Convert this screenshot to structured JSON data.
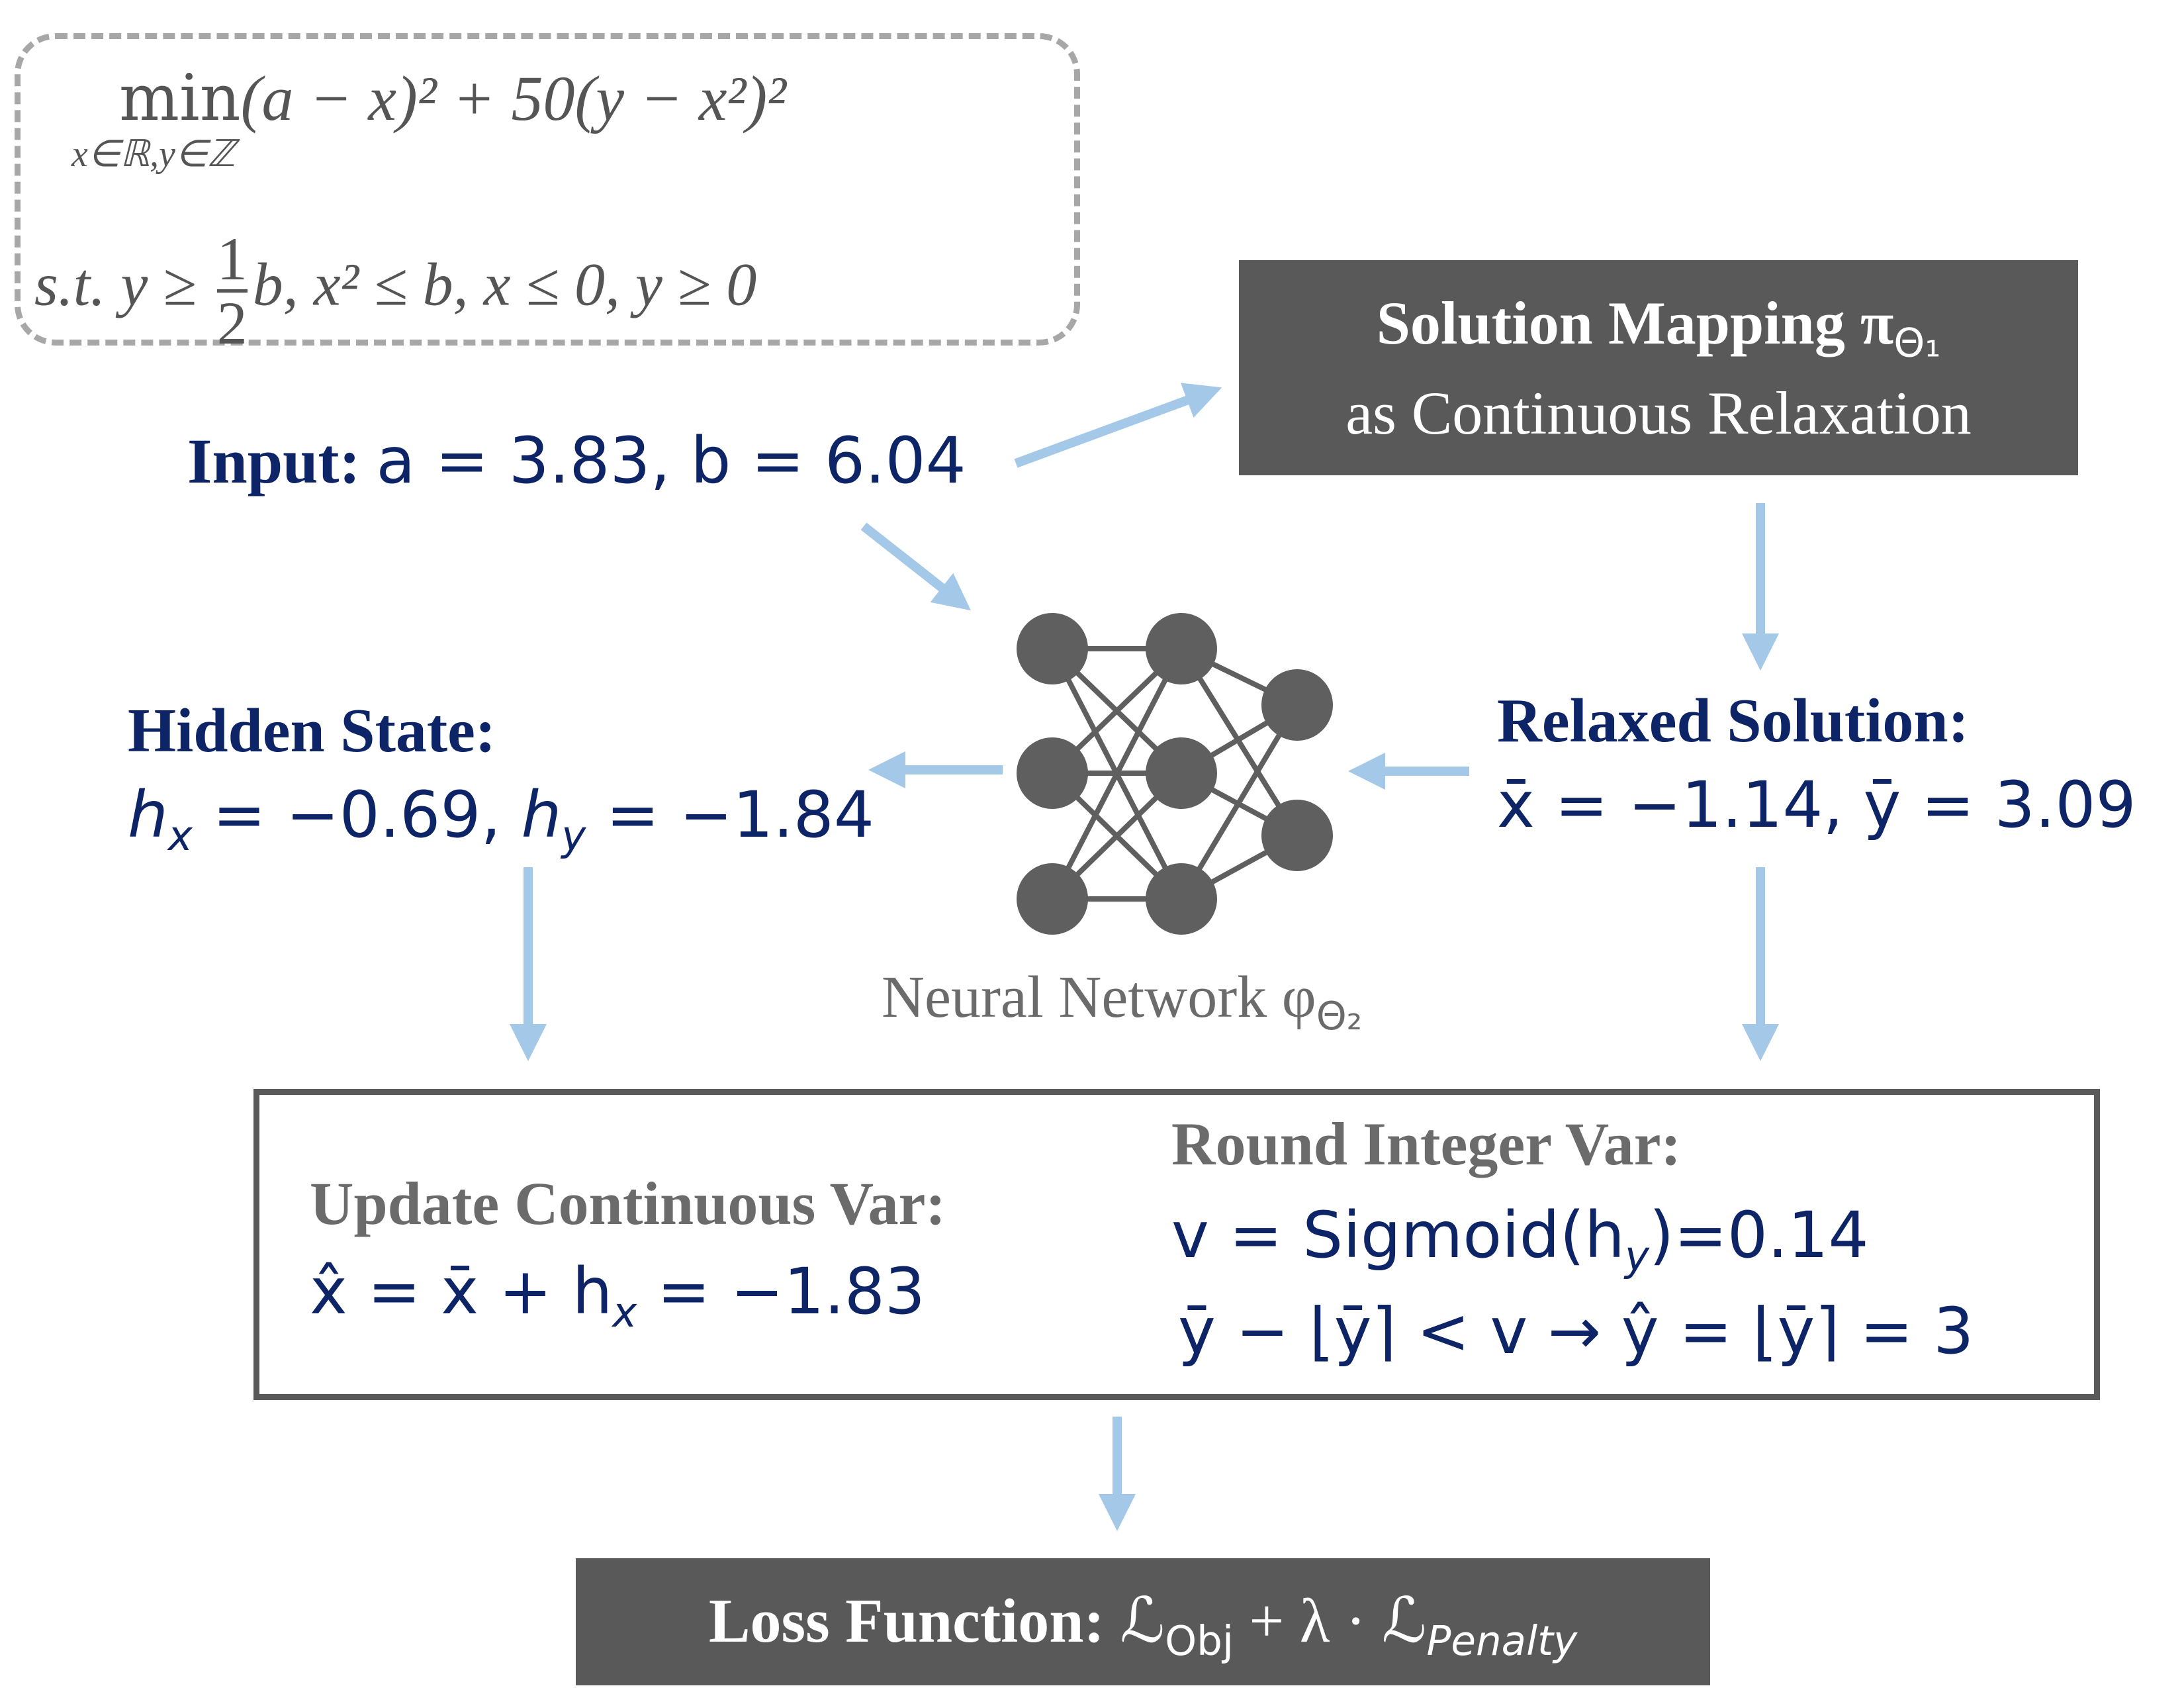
{
  "problem": {
    "objective_min": "min",
    "objective_expr": "(a − x)² + 50(y − x²)²",
    "objective_domain": "x∈ℝ,y∈ℤ",
    "constraints_prefix": "s.t.  y ≥",
    "constraints_frac_num": "1",
    "constraints_frac_den": "2",
    "constraints_rest": "b, x² ≤ b, x ≤ 0, y ≥ 0"
  },
  "input": {
    "label": "Input:",
    "values": "a = 3.83, b = 6.04"
  },
  "mapping_box": {
    "title": "Solution Mapping π",
    "title_sub": "Θ₁",
    "subtitle": "as Continuous Relaxation"
  },
  "hidden_state": {
    "title": "Hidden State:",
    "hx_sym": "h",
    "hx_sub": "x",
    "hx_val": " = −0.69, ",
    "hy_sym": "h",
    "hy_sub": "y",
    "hy_val": " = −1.84"
  },
  "relaxed_solution": {
    "title": "Relaxed Solution:",
    "values": "x̄ = −1.14, ȳ = 3.09"
  },
  "neural_network": {
    "label": "Neural Network φ",
    "label_sub": "Θ₂"
  },
  "update_box": {
    "update_title": "Update Continuous Var:",
    "update_formula": "x̂ = x̄ + h",
    "update_formula_sub": "x",
    "update_formula_tail": " = −1.83",
    "round_title": "Round Integer Var:",
    "round_v": "v = Sigmoid(h",
    "round_v_sub": "y",
    "round_v_tail": ")=0.14",
    "round_y": "ȳ − ⌊ȳ⌉ < v → ŷ = ⌊ȳ⌉ = 3"
  },
  "loss_box": {
    "label": "Loss Function: ",
    "formula": "ℒ",
    "obj_sub": "Obj",
    "middle": " + λ · ℒ",
    "pen_sub": "Penalty"
  },
  "colors": {
    "arrow": "#a4c8e8",
    "navy_text": "#0d2466",
    "dark_box": "#595959",
    "gray_text": "#6b6b6b",
    "node": "#5f5f5f"
  }
}
